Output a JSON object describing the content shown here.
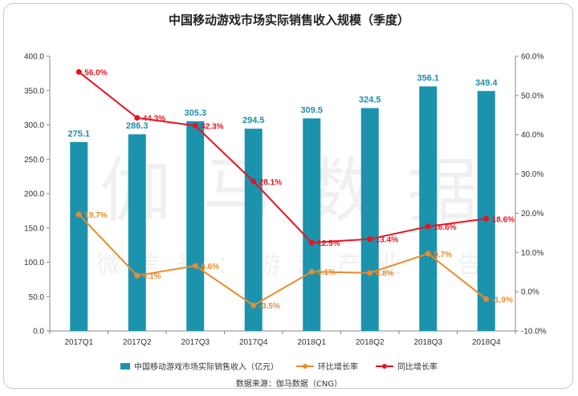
{
  "chart_data": {
    "type": "bar",
    "title": "中国移动游戏市场实际销售收入规模（季度）",
    "categories": [
      "2017Q1",
      "2017Q2",
      "2017Q3",
      "2017Q4",
      "2018Q1",
      "2018Q2",
      "2018Q3",
      "2018Q4"
    ],
    "series": [
      {
        "name": "中国移动游戏市场实际销售收入（亿元）",
        "kind": "bar",
        "axis": "left",
        "color": "#1b93ad",
        "values": [
          275.1,
          286.3,
          305.3,
          294.5,
          309.5,
          324.5,
          356.1,
          349.4
        ],
        "labels": [
          "275.1",
          "286.3",
          "305.3",
          "294.5",
          "309.5",
          "324.5",
          "356.1",
          "349.4"
        ]
      },
      {
        "name": "环比增长率",
        "kind": "line",
        "axis": "right",
        "color": "#ea8a2e",
        "values": [
          19.7,
          4.1,
          6.6,
          -3.5,
          5.1,
          4.8,
          9.7,
          -1.9
        ],
        "labels": [
          "19.7%",
          "4.1%",
          "6.6%",
          "-3.5%",
          "5.1%",
          "4.8%",
          "9.7%",
          "-1.9%"
        ]
      },
      {
        "name": "同比增长率",
        "kind": "line",
        "axis": "right",
        "color": "#e8131f",
        "values": [
          56.0,
          44.3,
          42.3,
          28.1,
          12.5,
          13.4,
          16.6,
          18.6
        ],
        "labels": [
          "56.0%",
          "44.3%",
          "42.3%",
          "28.1%",
          "12.5%",
          "13.4%",
          "16.6%",
          "18.6%"
        ]
      }
    ],
    "y_left": {
      "lim": [
        0,
        400
      ],
      "ticks": [
        0,
        50,
        100,
        150,
        200,
        250,
        300,
        350,
        400
      ],
      "tick_labels": [
        "0.0",
        "50.0",
        "100.0",
        "150.0",
        "200.0",
        "250.0",
        "300.0",
        "350.0",
        "400.0"
      ]
    },
    "y_right": {
      "lim": [
        -10,
        60
      ],
      "ticks": [
        -10,
        0,
        10,
        20,
        30,
        40,
        50,
        60
      ],
      "tick_labels": [
        "-10.0%",
        "0.0%",
        "10.0%",
        "20.0%",
        "30.0%",
        "40.0%",
        "50.0%",
        "60.0%"
      ]
    },
    "grid": false,
    "legend_position": "bottom",
    "watermark": "伽马数据",
    "watermark_sub": "微信号：游戏产业报告"
  },
  "source": "数据来源：伽马数据（CNG）"
}
